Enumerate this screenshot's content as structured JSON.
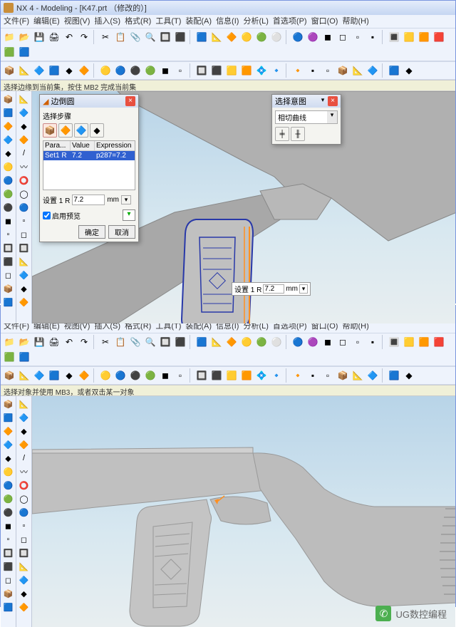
{
  "app1": {
    "title": "NX 4 - Modeling - [K47.prt （修改的）]",
    "menu": [
      "文件(F)",
      "编辑(E)",
      "视图(V)",
      "插入(S)",
      "格式(R)",
      "工具(T)",
      "装配(A)",
      "信息(I)",
      "分析(L)",
      "首选项(P)",
      "窗口(O)",
      "帮助(H)"
    ],
    "status": "选择边缘到当前集，按住 MB2 完成当前集"
  },
  "app2": {
    "title": "NX 4 - Modeling - [K47.prt （修改的）]",
    "menu": [
      "文件(F)",
      "编辑(E)",
      "视图(V)",
      "插入(S)",
      "格式(R)",
      "工具(T)",
      "装配(A)",
      "信息(I)",
      "分析(L)",
      "首选项(P)",
      "窗口(O)",
      "帮助(H)"
    ],
    "status": "选择对象并使用 MB3，或者双击某一对象"
  },
  "dialog1": {
    "title": "边倒圆",
    "section": "选择步骤",
    "cols": [
      "Para...",
      "Value",
      "Expression"
    ],
    "row": {
      "param": "Set1 R",
      "value": "7.2",
      "expr": "p287=7.2"
    },
    "fieldLabel": "设置 1 R",
    "fieldValue": "7.2",
    "unit": "mm",
    "preview": "启用预览",
    "ok": "确定",
    "cancel": "取消"
  },
  "dialog2": {
    "title": "选择意图",
    "combo": "相切曲线"
  },
  "floatLabel": {
    "label": "设置 1 R",
    "value": "7.2",
    "unit": "mm"
  },
  "watermark": "UG数控编程",
  "colors": {
    "gripBlue": "#2838a8",
    "bodyGray": "#b8b8b8",
    "highlight": "#ff9020",
    "selectBg": "#3060d0"
  },
  "icons1": [
    "📁",
    "📂",
    "💾",
    "🖨",
    "↶",
    "↷",
    "✂",
    "📋",
    "📎",
    "🔍",
    "🔲",
    "⬛",
    "🟦",
    "📐",
    "🔶",
    "🟡",
    "🟢",
    "⚪",
    "🔵",
    "🟣",
    "◼",
    "◻",
    "▫",
    "▪",
    "🔳",
    "🟨",
    "🟧",
    "🟥",
    "🟩",
    "🟦",
    "⬜",
    "🔷",
    "🔶",
    "◆",
    "◇"
  ],
  "icons2": [
    "📦",
    "📐",
    "🔷",
    "🟦",
    "◆",
    "🔶",
    "🟡",
    "🔵",
    "⚫",
    "🟢",
    "◼",
    "▫",
    "🔲",
    "⬛",
    "🟨",
    "🟧",
    "💠",
    "🔹",
    "🔸",
    "▪",
    "▫"
  ],
  "leftIcons": [
    "📦",
    "🟦",
    "🔶",
    "🔷",
    "◆",
    "🟡",
    "🔵",
    "🟢",
    "⚫",
    "◼",
    "▫",
    "🔲",
    "⬛",
    "◻"
  ],
  "leftIcons2": [
    "📐",
    "🔷",
    "◆",
    "🔶",
    "/",
    "〰",
    "⭕",
    "◯",
    "🔵",
    "▫",
    "◻",
    "🔲"
  ]
}
